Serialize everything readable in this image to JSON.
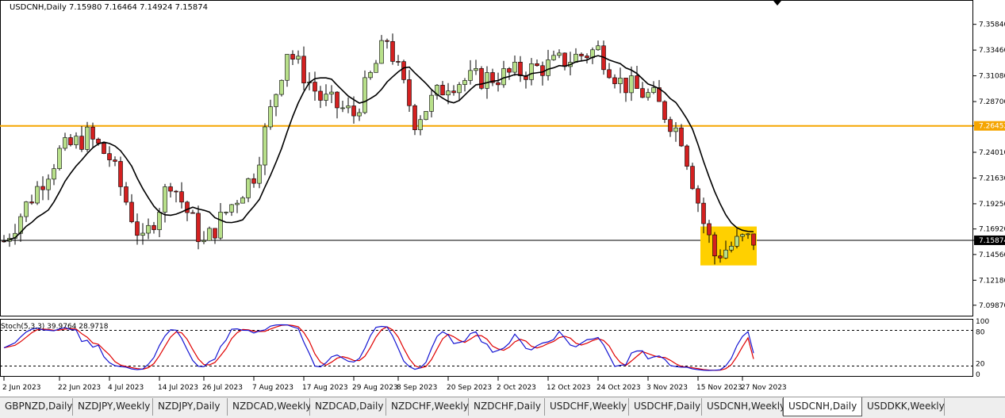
{
  "window": {
    "header": "USDCNH,Daily  7.15980 7.16464 7.14924 7.15874",
    "stochastic_label": "Stoch(5,3,3) 39.9764 28.9718"
  },
  "colors": {
    "bull_candle": "#b8e08a",
    "bear_candle": "#d42020",
    "ma_line": "#000000",
    "resistance_line": "#f5a500",
    "highlight_box": "#ffd000",
    "stoch_main": "#1414d2",
    "stoch_signal": "#e00000",
    "current_price_label_bg": "#000000",
    "resistance_label_bg": "#f5a500"
  },
  "tabs": [
    {
      "label": "GBPNZD,Daily",
      "active": false
    },
    {
      "label": "NZDJPY,Weekly",
      "active": false
    },
    {
      "label": "NZDJPY,Daily",
      "active": false
    },
    {
      "label": "NZDCAD,Weekly",
      "active": false
    },
    {
      "label": "NZDCAD,Daily",
      "active": false
    },
    {
      "label": "NZDCHF,Weekly",
      "active": false
    },
    {
      "label": "NZDCHF,Daily",
      "active": false
    },
    {
      "label": "USDCHF,Weekly",
      "active": false
    },
    {
      "label": "USDCHF,Daily",
      "active": false
    },
    {
      "label": "USDCNH,Weekly",
      "active": false
    },
    {
      "label": "USDCNH,Daily",
      "active": true
    },
    {
      "label": "USDDKK,Weekly",
      "active": false
    }
  ],
  "chart_data": [
    {
      "type": "candlestick",
      "symbol": "USDCNH",
      "timeframe": "Daily",
      "ohlc_header": {
        "open": 7.1598,
        "high": 7.16464,
        "low": 7.14924,
        "close": 7.15874
      },
      "ylim": [
        7.0905,
        7.3765
      ],
      "y_ticks": [
        "7.35840",
        "7.33460",
        "7.31080",
        "7.28700",
        "7.26452",
        "7.24010",
        "7.21630",
        "7.19250",
        "7.16920",
        "7.15874",
        "7.14560",
        "7.12180",
        "7.09870"
      ],
      "x_tick_labels": [
        "2 Jun 2023",
        "22 Jun 2023",
        "4 Jul 2023",
        "14 Jul 2023",
        "26 Jul 2023",
        "7 Aug 2023",
        "17 Aug 2023",
        "29 Aug 2023",
        "8 Sep 2023",
        "20 Sep 2023",
        "2 Oct 2023",
        "12 Oct 2023",
        "24 Oct 2023",
        "3 Nov 2023",
        "15 Nov 2023",
        "27 Nov 2023"
      ],
      "x_tick_bar_index": [
        0,
        10,
        19,
        28,
        36,
        45,
        54,
        63,
        71,
        80,
        89,
        98,
        107,
        116,
        125,
        133
      ],
      "resistance_level": 7.26452,
      "current_price": 7.15874,
      "highlight_zone": {
        "from_bar": 126,
        "to_bar": 135,
        "price_low": 7.1355,
        "price_high": 7.1715
      },
      "moving_average_end": 7.18,
      "candles_sampled": [
        {
          "bar": 0,
          "close": 7.158
        },
        {
          "bar": 10,
          "close": 7.24
        },
        {
          "bar": 15,
          "close": 7.255
        },
        {
          "bar": 19,
          "close": 7.235
        },
        {
          "bar": 25,
          "close": 7.155
        },
        {
          "bar": 30,
          "close": 7.215
        },
        {
          "bar": 36,
          "close": 7.155
        },
        {
          "bar": 40,
          "close": 7.185
        },
        {
          "bar": 45,
          "close": 7.22
        },
        {
          "bar": 51,
          "close": 7.335
        },
        {
          "bar": 57,
          "close": 7.29
        },
        {
          "bar": 63,
          "close": 7.275
        },
        {
          "bar": 69,
          "close": 7.345
        },
        {
          "bar": 74,
          "close": 7.27
        },
        {
          "bar": 80,
          "close": 7.305
        },
        {
          "bar": 89,
          "close": 7.31
        },
        {
          "bar": 98,
          "close": 7.32
        },
        {
          "bar": 107,
          "close": 7.335
        },
        {
          "bar": 111,
          "close": 7.305
        },
        {
          "bar": 117,
          "close": 7.29
        },
        {
          "bar": 122,
          "close": 7.255
        },
        {
          "bar": 126,
          "close": 7.175
        },
        {
          "bar": 128,
          "close": 7.145
        },
        {
          "bar": 133,
          "close": 7.159
        }
      ]
    },
    {
      "type": "line",
      "indicator": "Stochastic",
      "params": "5,3,3",
      "main_value": 39.9764,
      "signal_value": 28.9718,
      "ylim": [
        0,
        100
      ],
      "y_ticks": [
        "100",
        "80",
        "20",
        "0"
      ],
      "levels": [
        80,
        20
      ]
    }
  ]
}
